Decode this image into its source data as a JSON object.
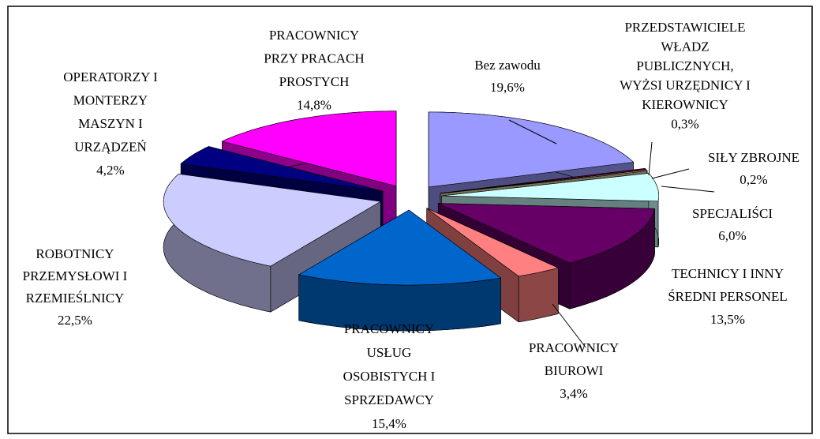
{
  "chart_data": {
    "type": "pie3d",
    "categories": [
      [
        "Bez zawodu"
      ],
      [
        "PRZEDSTAWICIELE",
        "WŁADZ",
        "PUBLICZNYCH,",
        "WYŻSI URZĘDNICY I",
        "KIEROWNICY"
      ],
      [
        "SIŁY ZBROJNE"
      ],
      [
        "SPECJALIŚCI"
      ],
      [
        "TECHNICY I INNY",
        "ŚREDNI PERSONEL"
      ],
      [
        "PRACOWNICY",
        "BIUROWI"
      ],
      [
        "PRACOWNICY",
        "USŁUG",
        "OSOBISTYCH I",
        "SPRZEDAWCY"
      ],
      [
        "ROBOTNICY",
        "PRZEMYSŁOWI I",
        "RZEMIEŚLNICY"
      ],
      [
        "OPERATORZY I",
        "MONTERZY",
        "MASZYN I",
        "URZĄDZEŃ"
      ],
      [
        "PRACOWNICY",
        "PRZY PRACACH",
        "PROSTYCH"
      ]
    ],
    "values": [
      19.6,
      0.3,
      0.2,
      6.0,
      13.5,
      3.4,
      15.4,
      22.5,
      4.2,
      14.8
    ],
    "value_labels": [
      "19,6%",
      "0,3%",
      "0,2%",
      "6,0%",
      "13,5%",
      "3,4%",
      "15,4%",
      "22,5%",
      "4,2%",
      "14,8%"
    ],
    "colors": [
      "#9999ff",
      "#660033",
      "#e8e0b0",
      "#ccffff",
      "#660066",
      "#ff8080",
      "#0066cc",
      "#ccccff",
      "#000080",
      "#ff00ff"
    ]
  }
}
